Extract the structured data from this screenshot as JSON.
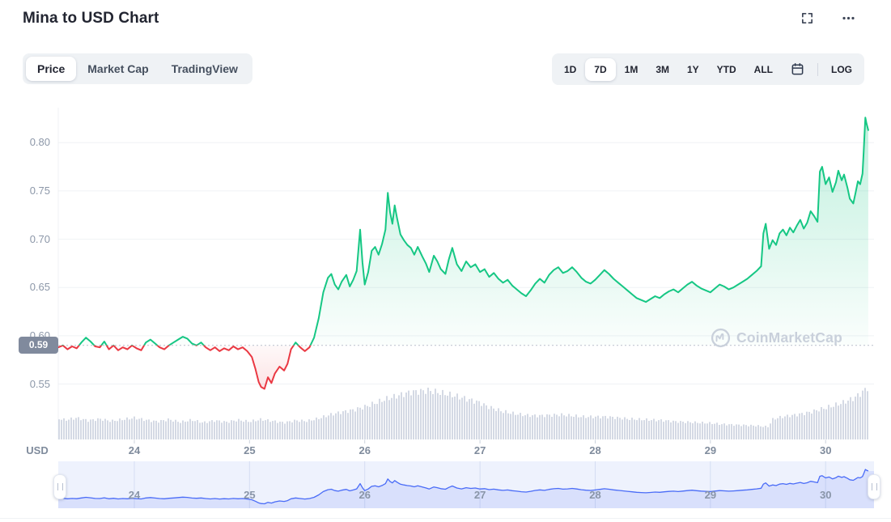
{
  "header": {
    "title": "Mina to USD Chart"
  },
  "tabs": {
    "items": [
      "Price",
      "Market Cap",
      "TradingView"
    ],
    "active": "Price"
  },
  "range_controls": {
    "items": [
      "1D",
      "7D",
      "1M",
      "3M",
      "1Y",
      "YTD",
      "ALL"
    ],
    "active": "7D",
    "log_label": "LOG"
  },
  "watermark": {
    "text": "CoinMarketCap"
  },
  "colors": {
    "up": "#16c784",
    "down": "#ea3943",
    "up_fill_top": "rgba(22,199,132,0.28)",
    "up_fill_bottom": "rgba(22,199,132,0.02)",
    "down_fill_top": "rgba(234,57,67,0.03)",
    "down_fill_bottom": "rgba(234,57,67,0.16)",
    "baseline_dot": "#b9c0cc",
    "grid": "#eff2f5",
    "tick": "#ccd3dd",
    "volume": "#cfd5e2",
    "nav_bg": "#eef2fd",
    "nav_line": "#4a6cf7",
    "nav_fill": "rgba(74,108,247,0.13)",
    "nav_grid": "rgba(140,160,210,0.25)",
    "badge_bg": "#808a9d",
    "watermark": "#c9d0db"
  },
  "chart_data": {
    "type": "line",
    "title": "Mina to USD Chart",
    "unit_label": "USD",
    "baseline": 0.59,
    "baseline_label": "0.59",
    "y_ticks": [
      0.8,
      0.75,
      0.7,
      0.65,
      0.6,
      0.55
    ],
    "y_tick_labels": [
      "0.80",
      "0.75",
      "0.70",
      "0.65",
      "0.60",
      "0.55"
    ],
    "x_ticks": [
      24,
      25,
      26,
      27,
      28,
      29,
      30
    ],
    "x_tick_labels": [
      "24",
      "25",
      "26",
      "27",
      "28",
      "29",
      "30"
    ],
    "xlim": [
      23.34,
      30.42
    ],
    "ylim": [
      0.49,
      0.835
    ],
    "legend": "off",
    "grid": "horizontal",
    "price": [
      [
        23.34,
        0.588
      ],
      [
        23.38,
        0.59
      ],
      [
        23.42,
        0.586
      ],
      [
        23.46,
        0.589
      ],
      [
        23.5,
        0.587
      ],
      [
        23.54,
        0.593
      ],
      [
        23.58,
        0.598
      ],
      [
        23.62,
        0.594
      ],
      [
        23.66,
        0.589
      ],
      [
        23.7,
        0.588
      ],
      [
        23.74,
        0.594
      ],
      [
        23.78,
        0.586
      ],
      [
        23.82,
        0.59
      ],
      [
        23.86,
        0.585
      ],
      [
        23.9,
        0.588
      ],
      [
        23.94,
        0.586
      ],
      [
        23.98,
        0.59
      ],
      [
        24.02,
        0.587
      ],
      [
        24.06,
        0.585
      ],
      [
        24.1,
        0.593
      ],
      [
        24.14,
        0.596
      ],
      [
        24.18,
        0.592
      ],
      [
        24.22,
        0.588
      ],
      [
        24.26,
        0.586
      ],
      [
        24.3,
        0.59
      ],
      [
        24.34,
        0.593
      ],
      [
        24.38,
        0.596
      ],
      [
        24.42,
        0.599
      ],
      [
        24.46,
        0.597
      ],
      [
        24.5,
        0.592
      ],
      [
        24.54,
        0.59
      ],
      [
        24.58,
        0.593
      ],
      [
        24.62,
        0.588
      ],
      [
        24.66,
        0.585
      ],
      [
        24.7,
        0.588
      ],
      [
        24.74,
        0.584
      ],
      [
        24.78,
        0.587
      ],
      [
        24.82,
        0.585
      ],
      [
        24.86,
        0.589
      ],
      [
        24.9,
        0.586
      ],
      [
        24.94,
        0.588
      ],
      [
        24.98,
        0.584
      ],
      [
        25.02,
        0.578
      ],
      [
        25.05,
        0.566
      ],
      [
        25.08,
        0.552
      ],
      [
        25.1,
        0.547
      ],
      [
        25.13,
        0.545
      ],
      [
        25.16,
        0.557
      ],
      [
        25.19,
        0.551
      ],
      [
        25.22,
        0.561
      ],
      [
        25.26,
        0.568
      ],
      [
        25.3,
        0.564
      ],
      [
        25.33,
        0.571
      ],
      [
        25.36,
        0.586
      ],
      [
        25.4,
        0.593
      ],
      [
        25.44,
        0.588
      ],
      [
        25.48,
        0.584
      ],
      [
        25.52,
        0.588
      ],
      [
        25.56,
        0.598
      ],
      [
        25.6,
        0.618
      ],
      [
        25.64,
        0.645
      ],
      [
        25.68,
        0.66
      ],
      [
        25.71,
        0.664
      ],
      [
        25.74,
        0.653
      ],
      [
        25.77,
        0.648
      ],
      [
        25.8,
        0.656
      ],
      [
        25.84,
        0.663
      ],
      [
        25.87,
        0.651
      ],
      [
        25.9,
        0.658
      ],
      [
        25.93,
        0.667
      ],
      [
        25.96,
        0.71
      ],
      [
        25.98,
        0.676
      ],
      [
        26.0,
        0.653
      ],
      [
        26.03,
        0.666
      ],
      [
        26.06,
        0.688
      ],
      [
        26.09,
        0.692
      ],
      [
        26.12,
        0.684
      ],
      [
        26.15,
        0.695
      ],
      [
        26.18,
        0.71
      ],
      [
        26.2,
        0.748
      ],
      [
        26.22,
        0.728
      ],
      [
        26.24,
        0.716
      ],
      [
        26.26,
        0.735
      ],
      [
        26.28,
        0.722
      ],
      [
        26.31,
        0.705
      ],
      [
        26.34,
        0.699
      ],
      [
        26.37,
        0.694
      ],
      [
        26.4,
        0.691
      ],
      [
        26.43,
        0.684
      ],
      [
        26.46,
        0.692
      ],
      [
        26.5,
        0.682
      ],
      [
        26.53,
        0.675
      ],
      [
        26.56,
        0.666
      ],
      [
        26.6,
        0.683
      ],
      [
        26.63,
        0.677
      ],
      [
        26.66,
        0.669
      ],
      [
        26.7,
        0.664
      ],
      [
        26.73,
        0.679
      ],
      [
        26.76,
        0.691
      ],
      [
        26.8,
        0.674
      ],
      [
        26.84,
        0.667
      ],
      [
        26.88,
        0.677
      ],
      [
        26.92,
        0.671
      ],
      [
        26.96,
        0.674
      ],
      [
        27.0,
        0.666
      ],
      [
        27.04,
        0.669
      ],
      [
        27.08,
        0.661
      ],
      [
        27.12,
        0.665
      ],
      [
        27.16,
        0.659
      ],
      [
        27.2,
        0.655
      ],
      [
        27.24,
        0.658
      ],
      [
        27.28,
        0.652
      ],
      [
        27.32,
        0.648
      ],
      [
        27.36,
        0.644
      ],
      [
        27.4,
        0.641
      ],
      [
        27.44,
        0.647
      ],
      [
        27.48,
        0.654
      ],
      [
        27.52,
        0.659
      ],
      [
        27.56,
        0.655
      ],
      [
        27.6,
        0.663
      ],
      [
        27.64,
        0.668
      ],
      [
        27.68,
        0.671
      ],
      [
        27.72,
        0.665
      ],
      [
        27.76,
        0.667
      ],
      [
        27.8,
        0.671
      ],
      [
        27.84,
        0.666
      ],
      [
        27.88,
        0.66
      ],
      [
        27.92,
        0.656
      ],
      [
        27.96,
        0.654
      ],
      [
        28.0,
        0.658
      ],
      [
        28.04,
        0.663
      ],
      [
        28.08,
        0.668
      ],
      [
        28.12,
        0.664
      ],
      [
        28.16,
        0.659
      ],
      [
        28.2,
        0.655
      ],
      [
        28.24,
        0.651
      ],
      [
        28.28,
        0.647
      ],
      [
        28.32,
        0.643
      ],
      [
        28.36,
        0.639
      ],
      [
        28.4,
        0.637
      ],
      [
        28.44,
        0.635
      ],
      [
        28.48,
        0.638
      ],
      [
        28.52,
        0.641
      ],
      [
        28.56,
        0.639
      ],
      [
        28.6,
        0.643
      ],
      [
        28.64,
        0.646
      ],
      [
        28.68,
        0.648
      ],
      [
        28.72,
        0.645
      ],
      [
        28.76,
        0.649
      ],
      [
        28.8,
        0.653
      ],
      [
        28.84,
        0.656
      ],
      [
        28.88,
        0.652
      ],
      [
        28.92,
        0.649
      ],
      [
        28.96,
        0.647
      ],
      [
        29.0,
        0.645
      ],
      [
        29.04,
        0.649
      ],
      [
        29.08,
        0.653
      ],
      [
        29.12,
        0.651
      ],
      [
        29.16,
        0.648
      ],
      [
        29.2,
        0.65
      ],
      [
        29.24,
        0.653
      ],
      [
        29.28,
        0.656
      ],
      [
        29.32,
        0.659
      ],
      [
        29.36,
        0.663
      ],
      [
        29.4,
        0.667
      ],
      [
        29.44,
        0.672
      ],
      [
        29.46,
        0.706
      ],
      [
        29.48,
        0.716
      ],
      [
        29.51,
        0.69
      ],
      [
        29.54,
        0.699
      ],
      [
        29.57,
        0.694
      ],
      [
        29.6,
        0.706
      ],
      [
        29.63,
        0.71
      ],
      [
        29.66,
        0.704
      ],
      [
        29.69,
        0.712
      ],
      [
        29.72,
        0.707
      ],
      [
        29.75,
        0.714
      ],
      [
        29.78,
        0.72
      ],
      [
        29.81,
        0.711
      ],
      [
        29.84,
        0.717
      ],
      [
        29.87,
        0.729
      ],
      [
        29.9,
        0.724
      ],
      [
        29.93,
        0.718
      ],
      [
        29.95,
        0.77
      ],
      [
        29.97,
        0.775
      ],
      [
        30.0,
        0.757
      ],
      [
        30.03,
        0.764
      ],
      [
        30.06,
        0.749
      ],
      [
        30.09,
        0.759
      ],
      [
        30.11,
        0.771
      ],
      [
        30.14,
        0.761
      ],
      [
        30.16,
        0.767
      ],
      [
        30.19,
        0.753
      ],
      [
        30.21,
        0.742
      ],
      [
        30.24,
        0.737
      ],
      [
        30.26,
        0.748
      ],
      [
        30.28,
        0.76
      ],
      [
        30.3,
        0.757
      ],
      [
        30.32,
        0.768
      ],
      [
        30.33,
        0.79
      ],
      [
        30.345,
        0.826
      ],
      [
        30.355,
        0.82
      ],
      [
        30.37,
        0.813
      ]
    ],
    "volume": [
      [
        23.34,
        0.4
      ],
      [
        23.4,
        0.37
      ],
      [
        23.5,
        0.41
      ],
      [
        23.6,
        0.36
      ],
      [
        23.7,
        0.39
      ],
      [
        23.8,
        0.35
      ],
      [
        23.9,
        0.38
      ],
      [
        24.0,
        0.41
      ],
      [
        24.1,
        0.37
      ],
      [
        24.2,
        0.34
      ],
      [
        24.3,
        0.38
      ],
      [
        24.4,
        0.33
      ],
      [
        24.5,
        0.37
      ],
      [
        24.6,
        0.32
      ],
      [
        24.7,
        0.36
      ],
      [
        24.8,
        0.33
      ],
      [
        24.9,
        0.37
      ],
      [
        25.0,
        0.34
      ],
      [
        25.1,
        0.38
      ],
      [
        25.2,
        0.35
      ],
      [
        25.3,
        0.32
      ],
      [
        25.4,
        0.36
      ],
      [
        25.5,
        0.35
      ],
      [
        25.6,
        0.4
      ],
      [
        25.7,
        0.47
      ],
      [
        25.8,
        0.52
      ],
      [
        25.9,
        0.56
      ],
      [
        26.0,
        0.62
      ],
      [
        26.1,
        0.7
      ],
      [
        26.2,
        0.78
      ],
      [
        26.3,
        0.84
      ],
      [
        26.4,
        0.9
      ],
      [
        26.5,
        0.92
      ],
      [
        26.55,
        0.93
      ],
      [
        26.6,
        0.91
      ],
      [
        26.7,
        0.87
      ],
      [
        26.8,
        0.82
      ],
      [
        26.9,
        0.76
      ],
      [
        27.0,
        0.7
      ],
      [
        27.05,
        0.64
      ],
      [
        27.1,
        0.6
      ],
      [
        27.2,
        0.53
      ],
      [
        27.3,
        0.49
      ],
      [
        27.4,
        0.46
      ],
      [
        27.5,
        0.45
      ],
      [
        27.6,
        0.46
      ],
      [
        27.7,
        0.47
      ],
      [
        27.8,
        0.45
      ],
      [
        27.9,
        0.43
      ],
      [
        28.0,
        0.43
      ],
      [
        28.1,
        0.43
      ],
      [
        28.2,
        0.41
      ],
      [
        28.3,
        0.39
      ],
      [
        28.4,
        0.38
      ],
      [
        28.5,
        0.37
      ],
      [
        28.6,
        0.36
      ],
      [
        28.7,
        0.34
      ],
      [
        28.8,
        0.33
      ],
      [
        28.9,
        0.32
      ],
      [
        29.0,
        0.31
      ],
      [
        29.1,
        0.29
      ],
      [
        29.2,
        0.28
      ],
      [
        29.3,
        0.27
      ],
      [
        29.4,
        0.26
      ],
      [
        29.5,
        0.24
      ],
      [
        29.54,
        0.38
      ],
      [
        29.58,
        0.41
      ],
      [
        29.65,
        0.44
      ],
      [
        29.75,
        0.47
      ],
      [
        29.85,
        0.51
      ],
      [
        29.95,
        0.57
      ],
      [
        30.05,
        0.63
      ],
      [
        30.15,
        0.7
      ],
      [
        30.25,
        0.79
      ],
      [
        30.32,
        0.9
      ],
      [
        30.37,
        1.0
      ]
    ]
  }
}
